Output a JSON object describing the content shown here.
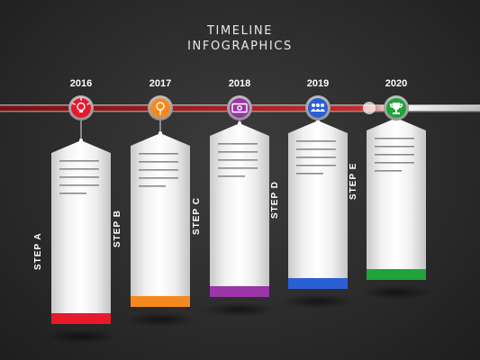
{
  "title_line1": "TIMELINE",
  "title_line2": "INFOGRAPHICS",
  "steps": [
    {
      "year": "2016",
      "label": "STEP A",
      "color": "#e8192c",
      "icon": "lightbulb-icon"
    },
    {
      "year": "2017",
      "label": "STEP B",
      "color": "#f5891f",
      "icon": "magnifier-icon"
    },
    {
      "year": "2018",
      "label": "STEP C",
      "color": "#9b35a8",
      "icon": "money-icon"
    },
    {
      "year": "2019",
      "label": "STEP D",
      "color": "#2b5fd6",
      "icon": "team-icon"
    },
    {
      "year": "2020",
      "label": "STEP E",
      "color": "#1fa33a",
      "icon": "trophy-icon"
    }
  ]
}
